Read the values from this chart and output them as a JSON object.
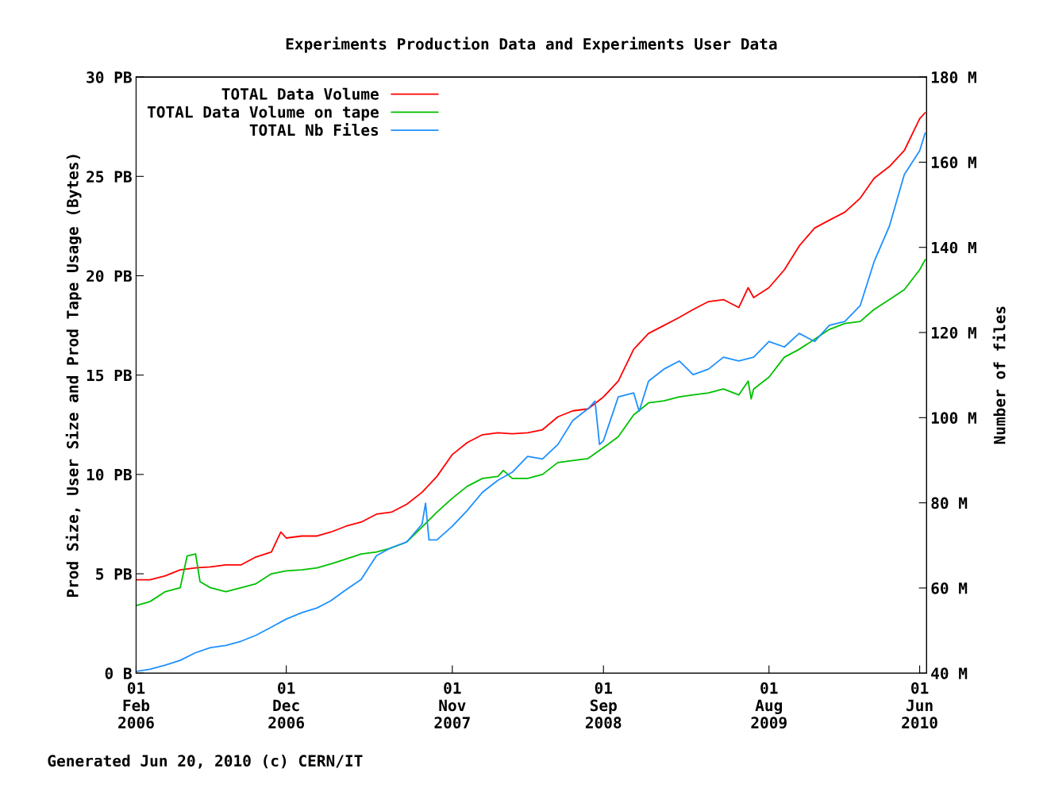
{
  "chart_data": {
    "type": "line",
    "title": "Experiments Production Data and Experiments User Data",
    "ylabel": "Prod Size, User Size and Prod Tape Usage (Bytes)",
    "y2label": "Number of files",
    "annotations": [
      "Generated Jun 20, 2010 (c) CERN/IT"
    ],
    "xlim": [
      "2006-02-01",
      "2010-06-15"
    ],
    "xticks": [
      {
        "value": "2006-02-01",
        "label": "01\nFeb\n2006"
      },
      {
        "value": "2006-12-01",
        "label": "01\nDec\n2006"
      },
      {
        "value": "2007-11-01",
        "label": "01\nNov\n2007"
      },
      {
        "value": "2008-09-01",
        "label": "01\nSep\n2008"
      },
      {
        "value": "2009-08-01",
        "label": "01\nAug\n2009"
      },
      {
        "value": "2010-06-01",
        "label": "01\nJun\n2010"
      }
    ],
    "ylim": [
      0,
      30
    ],
    "yticks": [
      {
        "value": 0,
        "label": "0 B"
      },
      {
        "value": 5,
        "label": "5 PB"
      },
      {
        "value": 10,
        "label": "10 PB"
      },
      {
        "value": 15,
        "label": "15 PB"
      },
      {
        "value": 20,
        "label": "20 PB"
      },
      {
        "value": 25,
        "label": "25 PB"
      },
      {
        "value": 30,
        "label": "30 PB"
      }
    ],
    "y2lim": [
      40,
      180
    ],
    "y2ticks": [
      {
        "value": 40,
        "label": "40 M"
      },
      {
        "value": 60,
        "label": "60 M"
      },
      {
        "value": 80,
        "label": "80 M"
      },
      {
        "value": 100,
        "label": "100 M"
      },
      {
        "value": 120,
        "label": "120 M"
      },
      {
        "value": 140,
        "label": "140 M"
      },
      {
        "value": 160,
        "label": "160 M"
      },
      {
        "value": 180,
        "label": "180 M"
      }
    ],
    "grid": false,
    "legend": "top left",
    "marker": "none",
    "line_style": "solid",
    "series": [
      {
        "name": "TOTAL Data Volume",
        "color": "#ff0000",
        "x": [
          "2006-02-01",
          "2006-03-01",
          "2006-04-01",
          "2006-05-01",
          "2006-06-01",
          "2006-07-01",
          "2006-08-01",
          "2006-09-01",
          "2006-10-01",
          "2006-11-01",
          "2006-11-20",
          "2006-12-01",
          "2007-01-01",
          "2007-02-01",
          "2007-03-01",
          "2007-04-01",
          "2007-05-01",
          "2007-06-01",
          "2007-07-01",
          "2007-08-01",
          "2007-09-01",
          "2007-10-01",
          "2007-11-01",
          "2007-12-01",
          "2008-01-01",
          "2008-02-01",
          "2008-03-01",
          "2008-04-01",
          "2008-05-01",
          "2008-06-01",
          "2008-07-01",
          "2008-08-01",
          "2008-09-01",
          "2008-10-01",
          "2008-11-01",
          "2008-12-01",
          "2009-01-01",
          "2009-02-01",
          "2009-03-01",
          "2009-04-01",
          "2009-05-01",
          "2009-06-01",
          "2009-06-20",
          "2009-07-01",
          "2009-08-01",
          "2009-09-01",
          "2009-10-01",
          "2009-11-01",
          "2009-12-01",
          "2010-01-01",
          "2010-02-01",
          "2010-03-01",
          "2010-04-01",
          "2010-05-01",
          "2010-06-01",
          "2010-06-12"
        ],
        "values": [
          4.7,
          4.7,
          4.9,
          5.2,
          5.3,
          5.35,
          5.45,
          5.45,
          5.85,
          6.1,
          7.1,
          6.8,
          6.9,
          6.9,
          7.1,
          7.4,
          7.6,
          8.0,
          8.1,
          8.5,
          9.1,
          9.9,
          11.0,
          11.6,
          12.0,
          12.1,
          12.05,
          12.1,
          12.25,
          12.9,
          13.2,
          13.3,
          13.9,
          14.7,
          16.3,
          17.1,
          17.5,
          17.9,
          18.3,
          18.7,
          18.8,
          18.4,
          19.4,
          18.9,
          19.4,
          20.3,
          21.5,
          22.4,
          22.8,
          23.2,
          23.9,
          24.9,
          25.5,
          26.3,
          27.9,
          28.2
        ]
      },
      {
        "name": "TOTAL Data Volume on tape",
        "color": "#00c000",
        "x": [
          "2006-02-01",
          "2006-03-01",
          "2006-04-01",
          "2006-05-01",
          "2006-05-15",
          "2006-06-01",
          "2006-06-10",
          "2006-07-01",
          "2006-08-01",
          "2006-09-01",
          "2006-10-01",
          "2006-11-01",
          "2006-12-01",
          "2007-01-01",
          "2007-02-01",
          "2007-03-01",
          "2007-04-01",
          "2007-05-01",
          "2007-06-01",
          "2007-07-01",
          "2007-08-01",
          "2007-09-01",
          "2007-10-01",
          "2007-11-01",
          "2007-12-01",
          "2008-01-01",
          "2008-02-01",
          "2008-02-12",
          "2008-03-01",
          "2008-04-01",
          "2008-05-01",
          "2008-06-01",
          "2008-07-01",
          "2008-08-01",
          "2008-09-01",
          "2008-10-01",
          "2008-11-01",
          "2008-12-01",
          "2009-01-01",
          "2009-02-01",
          "2009-03-01",
          "2009-04-01",
          "2009-05-01",
          "2009-06-01",
          "2009-06-20",
          "2009-06-26",
          "2009-07-01",
          "2009-08-01",
          "2009-09-01",
          "2009-10-01",
          "2009-11-01",
          "2009-12-01",
          "2010-01-01",
          "2010-02-01",
          "2010-03-01",
          "2010-04-01",
          "2010-05-01",
          "2010-06-01",
          "2010-06-12"
        ],
        "values": [
          3.4,
          3.6,
          4.1,
          4.3,
          5.9,
          6.0,
          4.6,
          4.3,
          4.1,
          4.3,
          4.5,
          5.0,
          5.15,
          5.2,
          5.3,
          5.5,
          5.75,
          6.0,
          6.1,
          6.3,
          6.6,
          7.35,
          8.1,
          8.8,
          9.4,
          9.8,
          9.9,
          10.2,
          9.8,
          9.8,
          10.0,
          10.6,
          10.7,
          10.8,
          11.35,
          11.9,
          13.0,
          13.6,
          13.7,
          13.9,
          14.0,
          14.1,
          14.3,
          14.0,
          14.7,
          13.8,
          14.3,
          14.9,
          15.9,
          16.3,
          16.8,
          17.3,
          17.6,
          17.7,
          18.3,
          18.8,
          19.3,
          20.3,
          20.8
        ]
      },
      {
        "name": "TOTAL Nb Files",
        "color": "#1e90ff",
        "axis": "y2",
        "x": [
          "2006-02-01",
          "2006-03-01",
          "2006-04-01",
          "2006-05-01",
          "2006-06-01",
          "2006-07-01",
          "2006-08-01",
          "2006-09-01",
          "2006-10-01",
          "2006-11-01",
          "2006-12-01",
          "2007-01-01",
          "2007-02-01",
          "2007-03-01",
          "2007-04-01",
          "2007-05-01",
          "2007-06-01",
          "2007-07-01",
          "2007-08-01",
          "2007-09-01",
          "2007-09-08",
          "2007-09-15",
          "2007-10-01",
          "2007-11-01",
          "2007-12-01",
          "2008-01-01",
          "2008-02-01",
          "2008-03-01",
          "2008-04-01",
          "2008-05-01",
          "2008-06-01",
          "2008-07-01",
          "2008-08-01",
          "2008-08-15",
          "2008-08-24",
          "2008-09-01",
          "2008-10-01",
          "2008-11-01",
          "2008-11-12",
          "2008-12-01",
          "2009-01-01",
          "2009-02-01",
          "2009-03-01",
          "2009-04-01",
          "2009-05-01",
          "2009-06-01",
          "2009-07-01",
          "2009-08-01",
          "2009-09-01",
          "2009-10-01",
          "2009-11-01",
          "2009-12-01",
          "2010-01-01",
          "2010-02-01",
          "2010-03-01",
          "2010-04-01",
          "2010-05-01",
          "2010-06-01",
          "2010-06-12"
        ],
        "values": [
          40.4,
          40.9,
          41.9,
          43.0,
          44.8,
          46.0,
          46.5,
          47.5,
          48.9,
          50.8,
          52.7,
          54.2,
          55.3,
          57.0,
          59.6,
          62.0,
          67.6,
          69.5,
          70.8,
          75.0,
          79.9,
          71.3,
          71.3,
          74.5,
          78.2,
          82.5,
          85.3,
          87.2,
          90.9,
          90.3,
          93.7,
          99.3,
          102.1,
          103.9,
          93.7,
          94.6,
          104.9,
          105.8,
          101.5,
          108.6,
          111.4,
          113.3,
          110.1,
          111.4,
          114.2,
          113.3,
          114.2,
          117.9,
          116.6,
          119.8,
          117.9,
          121.7,
          122.6,
          126.3,
          136.6,
          145.0,
          157.1,
          162.7,
          166.8
        ]
      }
    ]
  }
}
